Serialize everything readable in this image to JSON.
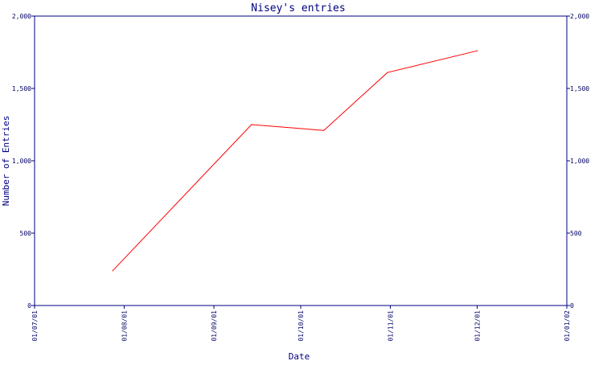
{
  "chart_data": {
    "type": "line",
    "title": "Nisey's entries",
    "xlabel": "Date",
    "ylabel": "Number of Entries",
    "x_ticks": [
      "01/07/01",
      "01/08/01",
      "01/09/01",
      "01/10/01",
      "01/11/01",
      "01/12/01",
      "01/01/02"
    ],
    "y_ticks": [
      "0",
      "500",
      "1,000",
      "1,500",
      "2,000"
    ],
    "ylim": [
      0,
      2000
    ],
    "xlim": [
      "2001-07-01",
      "2002-01-01"
    ],
    "grid": false,
    "colors": {
      "axis": "#000080",
      "line": "#ff0000",
      "background": "#ffffff"
    },
    "series": [
      {
        "x": [
          "2001-07-28",
          "2001-09-14",
          "2001-10-09",
          "2001-10-31",
          "2001-12-01"
        ],
        "values": [
          240,
          1250,
          1210,
          1610,
          1760
        ]
      }
    ]
  }
}
